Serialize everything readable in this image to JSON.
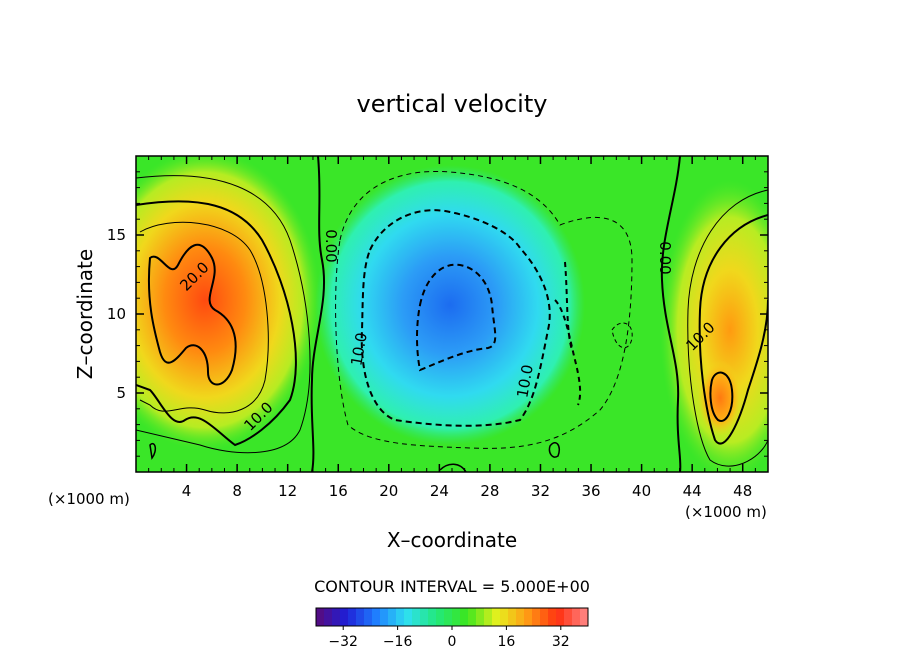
{
  "chart_data": {
    "type": "heatmap",
    "title": "vertical velocity",
    "xlabel": "X–coordinate",
    "ylabel": "Z–coordinate",
    "x_units_left": "(×1000 m)",
    "x_units_right": "(×1000 m)",
    "xlim": [
      0,
      50
    ],
    "ylim": [
      0,
      20
    ],
    "x_ticks": [
      4,
      8,
      12,
      16,
      20,
      24,
      28,
      32,
      36,
      40,
      44,
      48
    ],
    "x_tick_labels": [
      "4",
      "8",
      "12",
      "16",
      "20",
      "24",
      "28",
      "32",
      "36",
      "40",
      "44",
      "48"
    ],
    "y_ticks": [
      5,
      10,
      15
    ],
    "y_tick_labels": [
      "5",
      "10",
      "15"
    ],
    "contour_interval_text": "CONTOUR INTERVAL = 5.000E+00",
    "colorbar": {
      "range": [
        -40,
        40
      ],
      "ticks": [
        -32,
        -16,
        0,
        16,
        32
      ],
      "tick_labels": [
        "−32",
        "−16",
        "0",
        "16",
        "32"
      ],
      "colormap": [
        "#5a0a7a",
        "#1f1fd6",
        "#1f7fff",
        "#2fe0f0",
        "#22e87a",
        "#3ce61e",
        "#e6f01e",
        "#ff9a14",
        "#ff3010",
        "#ff8a8a"
      ]
    },
    "contour_labels": [
      "20.0",
      "10.0",
      "0.00",
      "10.0",
      "10.0",
      "0.00",
      "10.0"
    ],
    "features": [
      {
        "name": "updraft-left",
        "x": 5,
        "z": 10.5,
        "value": 25
      },
      {
        "name": "downdraft-center",
        "x": 25,
        "z": 10.5,
        "value": -20
      },
      {
        "name": "updraft-right",
        "x": 46,
        "z": 4.5,
        "value": 25
      }
    ],
    "grid": false,
    "legend": "colorbar-bottom"
  }
}
